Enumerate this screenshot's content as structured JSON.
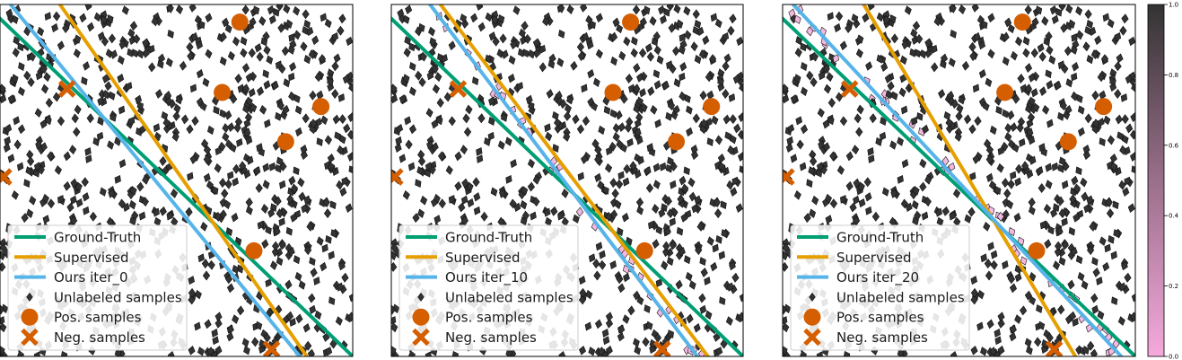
{
  "chart_data": [
    {
      "type": "scatter",
      "panel": "iter_0",
      "xlim": [
        0,
        1
      ],
      "ylim": [
        0,
        1
      ],
      "grid": false,
      "legend": {
        "placement": "lower-left",
        "entries": [
          "Ground-Truth",
          "Supervised",
          "Ours iter_0",
          "Unlabeled samples",
          "Pos. samples",
          "Neg. samples"
        ]
      },
      "lines": [
        {
          "name": "Ground-Truth",
          "x": [
            0,
            1
          ],
          "y": [
            0.96,
            0.0
          ]
        },
        {
          "name": "Supervised",
          "x": [
            0.17,
            0.87
          ],
          "y": [
            1.0,
            0.0
          ]
        },
        {
          "name": "Ours iter_0",
          "x": [
            0.03,
            0.85
          ],
          "y": [
            1.0,
            0.0
          ]
        }
      ],
      "pos_samples": [
        {
          "x": 0.68,
          "y": 0.95
        },
        {
          "x": 0.63,
          "y": 0.75
        },
        {
          "x": 0.91,
          "y": 0.71
        },
        {
          "x": 0.81,
          "y": 0.61
        },
        {
          "x": 0.72,
          "y": 0.3
        }
      ],
      "neg_samples": [
        {
          "x": 0.19,
          "y": 0.76
        },
        {
          "x": 0.01,
          "y": 0.51
        },
        {
          "x": 0.77,
          "y": 0.02
        }
      ],
      "unlabeled_samples": "random uniform scatter over the full plot area"
    },
    {
      "type": "scatter",
      "panel": "iter_10",
      "xlim": [
        0,
        1
      ],
      "ylim": [
        0,
        1
      ],
      "grid": false,
      "legend": {
        "placement": "lower-left",
        "entries": [
          "Ground-Truth",
          "Supervised",
          "Ours iter_10",
          "Unlabeled samples",
          "Pos. samples",
          "Neg. samples"
        ]
      },
      "lines": [
        {
          "name": "Ground-Truth",
          "x": [
            0,
            1
          ],
          "y": [
            0.96,
            0.0
          ]
        },
        {
          "name": "Supervised",
          "x": [
            0.14,
            0.9
          ],
          "y": [
            1.0,
            0.0
          ]
        },
        {
          "name": "Ours iter_10",
          "x": [
            0.11,
            0.87
          ],
          "y": [
            1.0,
            0.0
          ]
        }
      ],
      "pos_samples": [
        {
          "x": 0.68,
          "y": 0.95
        },
        {
          "x": 0.63,
          "y": 0.75
        },
        {
          "x": 0.91,
          "y": 0.71
        },
        {
          "x": 0.81,
          "y": 0.61
        },
        {
          "x": 0.72,
          "y": 0.3
        }
      ],
      "neg_samples": [
        {
          "x": 0.19,
          "y": 0.76
        },
        {
          "x": 0.01,
          "y": 0.51
        },
        {
          "x": 0.77,
          "y": 0.02
        }
      ],
      "unlabeled_samples": "random uniform scatter over the full plot area"
    },
    {
      "type": "scatter",
      "panel": "iter_20",
      "xlim": [
        0,
        1
      ],
      "ylim": [
        0,
        1
      ],
      "grid": false,
      "legend": {
        "placement": "lower-left",
        "entries": [
          "Ground-Truth",
          "Supervised",
          "Ours iter_20",
          "Unlabeled samples",
          "Pos. samples",
          "Neg. samples"
        ]
      },
      "lines": [
        {
          "name": "Ground-Truth",
          "x": [
            0,
            1
          ],
          "y": [
            0.96,
            0.0
          ]
        },
        {
          "name": "Supervised",
          "x": [
            0.23,
            0.83
          ],
          "y": [
            1.0,
            0.0
          ]
        },
        {
          "name": "Ours iter_20",
          "x": [
            0.03,
            0.96
          ],
          "y": [
            1.0,
            0.0
          ]
        }
      ],
      "pos_samples": [
        {
          "x": 0.68,
          "y": 0.95
        },
        {
          "x": 0.63,
          "y": 0.75
        },
        {
          "x": 0.91,
          "y": 0.71
        },
        {
          "x": 0.81,
          "y": 0.61
        },
        {
          "x": 0.72,
          "y": 0.3
        }
      ],
      "neg_samples": [
        {
          "x": 0.19,
          "y": 0.76
        },
        {
          "x": 0.01,
          "y": 0.51
        },
        {
          "x": 0.77,
          "y": 0.02
        }
      ],
      "unlabeled_samples": "random uniform scatter over the full plot area"
    }
  ],
  "colorbar": {
    "range": [
      0.0,
      1.0
    ],
    "ticks": [
      "0.0",
      "0.2",
      "0.4",
      "0.6",
      "0.8",
      "1.0"
    ],
    "colors": {
      "low": "#f5a9dc",
      "high": "#333333"
    }
  },
  "legend_labels": {
    "ground_truth": "Ground-Truth",
    "supervised": "Supervised",
    "ours": [
      "Ours iter_0",
      "Ours iter_10",
      "Ours iter_20"
    ],
    "unlabeled": "Unlabeled samples",
    "pos": "Pos. samples",
    "neg": "Neg. samples"
  },
  "colors": {
    "ground_truth": "#009e73",
    "supervised": "#e69f00",
    "ours": "#56b4e9",
    "pos": "#d55e00",
    "neg": "#d55e00",
    "unlabeled": "#333333",
    "near_boundary": "#f2b8e0"
  }
}
